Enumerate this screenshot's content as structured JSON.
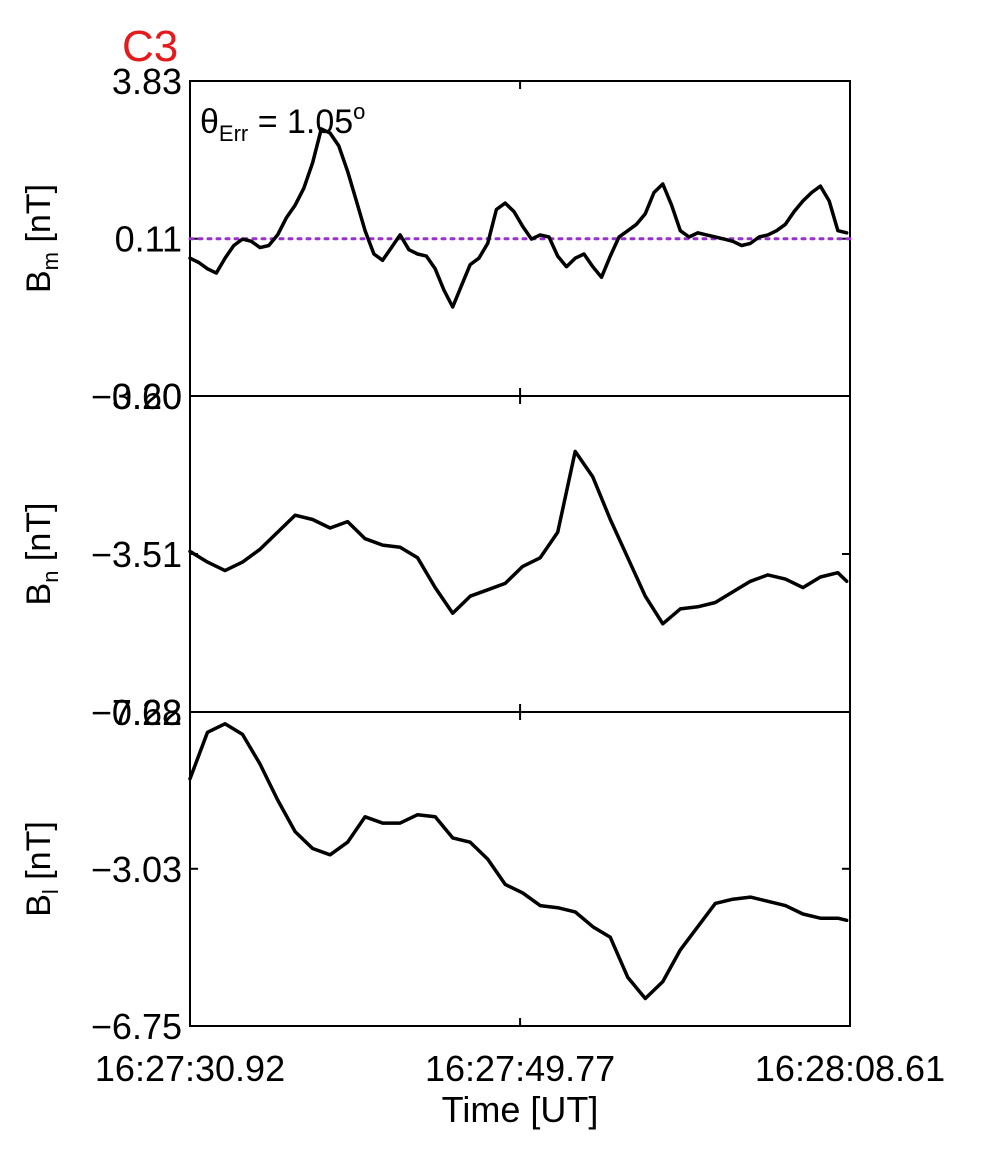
{
  "title": "C3",
  "chart_data": {
    "type": "line",
    "xlabel": "Time [UT]",
    "x_range": [
      "16:27:30.92",
      "16:28:08.61"
    ],
    "x_ticks": [
      "16:27:30.92",
      "16:27:49.77",
      "16:28:08.61"
    ],
    "annotation": {
      "symbol": "θ",
      "subscript": "Err",
      "equals": "=",
      "value": "1.05",
      "superscript": "o"
    },
    "colors": {
      "series": "#000000",
      "reference": "#9932cc",
      "title": "#e41a1c"
    },
    "panels": [
      {
        "ylabel_main": "B",
        "ylabel_sub": "m",
        "ylabel_unit": "[nT]",
        "ylim": [
          -3.6,
          3.83
        ],
        "yticks": [
          "3.83",
          "0.11",
          "−3.60"
        ],
        "ytick_values": [
          3.83,
          0.11,
          -3.6
        ],
        "reference_line": 0.11,
        "x": [
          0.0,
          0.5,
          1.0,
          1.5,
          2.0,
          2.5,
          3.0,
          3.5,
          4.0,
          4.5,
          5.0,
          5.5,
          6.0,
          6.5,
          7.0,
          7.5,
          8.0,
          8.5,
          9.0,
          9.5,
          10.0,
          10.5,
          11.0,
          11.5,
          12.0,
          12.5,
          13.0,
          13.5,
          14.0,
          14.5,
          15.0,
          15.5,
          16.0,
          16.5,
          17.0,
          17.5,
          18.0,
          18.5,
          19.0,
          19.5,
          20.0,
          20.5,
          21.0,
          21.5,
          22.0,
          22.5,
          23.0,
          23.5,
          24.0,
          24.5,
          25.0,
          25.5,
          26.0,
          26.5,
          27.0,
          27.5,
          28.0,
          28.5,
          29.0,
          29.5,
          30.0,
          30.5,
          31.0,
          31.5,
          32.0,
          32.5,
          33.0,
          33.5,
          34.0,
          34.5,
          35.0,
          35.5,
          36.0,
          36.5,
          37.0,
          37.5
        ],
        "y": [
          -0.35,
          -0.45,
          -0.6,
          -0.7,
          -0.35,
          -0.05,
          0.1,
          0.05,
          -0.1,
          -0.05,
          0.2,
          0.6,
          0.9,
          1.3,
          1.9,
          2.7,
          2.6,
          2.3,
          1.7,
          1.0,
          0.3,
          -0.25,
          -0.4,
          -0.1,
          0.2,
          -0.15,
          -0.25,
          -0.3,
          -0.6,
          -1.1,
          -1.5,
          -1.0,
          -0.5,
          -0.35,
          0.0,
          0.8,
          0.95,
          0.75,
          0.4,
          0.1,
          0.2,
          0.15,
          -0.3,
          -0.55,
          -0.35,
          -0.25,
          -0.55,
          -0.8,
          -0.3,
          0.15,
          0.3,
          0.45,
          0.7,
          1.2,
          1.4,
          0.9,
          0.3,
          0.15,
          0.25,
          0.2,
          0.15,
          0.1,
          0.05,
          -0.05,
          0.0,
          0.15,
          0.2,
          0.3,
          0.45,
          0.75,
          1.0,
          1.2,
          1.35,
          1.0,
          0.3,
          0.25
        ]
      },
      {
        "ylabel_main": "B",
        "ylabel_sub": "n",
        "ylabel_unit": "[nT]",
        "ylim": [
          -7.22,
          0.2
        ],
        "yticks": [
          "0.20",
          "−3.51",
          "−7.22"
        ],
        "ytick_values": [
          0.2,
          -3.51,
          -7.22
        ],
        "x": [
          0.0,
          1.0,
          2.0,
          3.0,
          4.0,
          5.0,
          6.0,
          7.0,
          8.0,
          9.0,
          10.0,
          11.0,
          12.0,
          13.0,
          14.0,
          15.0,
          16.0,
          17.0,
          18.0,
          19.0,
          20.0,
          21.0,
          22.0,
          23.0,
          24.0,
          25.0,
          26.0,
          27.0,
          28.0,
          29.0,
          30.0,
          31.0,
          32.0,
          33.0,
          34.0,
          35.0,
          36.0,
          37.0,
          37.5
        ],
        "y": [
          -3.45,
          -3.7,
          -3.9,
          -3.7,
          -3.4,
          -3.0,
          -2.6,
          -2.7,
          -2.9,
          -2.75,
          -3.15,
          -3.3,
          -3.35,
          -3.6,
          -4.3,
          -4.9,
          -4.5,
          -4.35,
          -4.2,
          -3.8,
          -3.6,
          -3.0,
          -1.1,
          -1.7,
          -2.7,
          -3.6,
          -4.5,
          -5.15,
          -4.8,
          -4.75,
          -4.65,
          -4.4,
          -4.15,
          -4.0,
          -4.1,
          -4.3,
          -4.05,
          -3.95,
          -4.15
        ]
      },
      {
        "ylabel_main": "B",
        "ylabel_sub": "l",
        "ylabel_unit": "[nT]",
        "ylim": [
          -6.75,
          0.68
        ],
        "yticks": [
          "0.68",
          "−3.03",
          "−6.75"
        ],
        "ytick_values": [
          0.68,
          -3.03,
          -6.75
        ],
        "x": [
          0.0,
          1.0,
          2.0,
          3.0,
          4.0,
          5.0,
          6.0,
          7.0,
          8.0,
          9.0,
          10.0,
          11.0,
          12.0,
          13.0,
          14.0,
          15.0,
          16.0,
          17.0,
          18.0,
          19.0,
          20.0,
          21.0,
          22.0,
          23.0,
          24.0,
          25.0,
          26.0,
          27.0,
          28.0,
          29.0,
          30.0,
          31.0,
          32.0,
          33.0,
          34.0,
          35.0,
          36.0,
          37.0,
          37.5
        ],
        "y": [
          -0.9,
          0.2,
          0.4,
          0.15,
          -0.55,
          -1.4,
          -2.15,
          -2.55,
          -2.7,
          -2.4,
          -1.8,
          -1.95,
          -1.95,
          -1.75,
          -1.8,
          -2.3,
          -2.4,
          -2.8,
          -3.4,
          -3.6,
          -3.9,
          -3.95,
          -4.05,
          -4.4,
          -4.65,
          -5.6,
          -6.1,
          -5.7,
          -4.95,
          -4.4,
          -3.85,
          -3.75,
          -3.7,
          -3.8,
          -3.9,
          -4.1,
          -4.2,
          -4.2,
          -4.25
        ]
      }
    ]
  }
}
